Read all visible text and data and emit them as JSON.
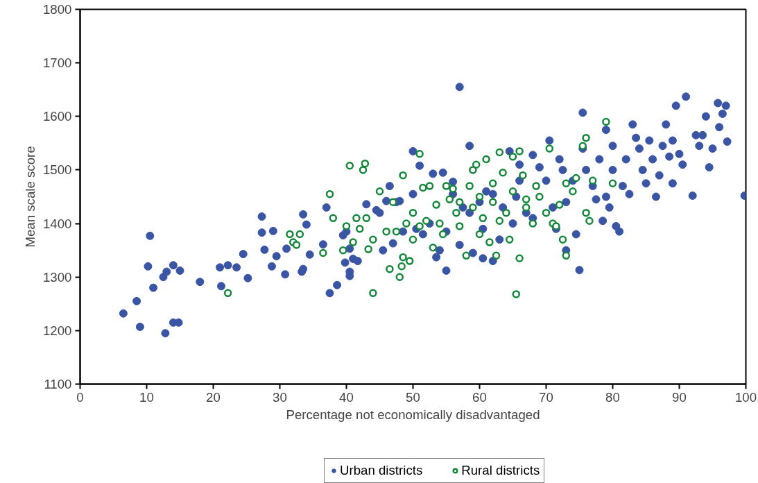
{
  "chart_data": {
    "type": "scatter",
    "xlabel": "Percentage not economically disadvantaged",
    "ylabel": "Mean scale score",
    "xlim": [
      0,
      100
    ],
    "xticks": [
      0,
      10,
      20,
      30,
      40,
      50,
      60,
      70,
      80,
      90,
      100
    ],
    "ylim": [
      1100,
      1800
    ],
    "yticks": [
      1100,
      1200,
      1300,
      1400,
      1500,
      1600,
      1700,
      1800
    ],
    "grid": false,
    "legend": "bottom",
    "marker": "circle",
    "series": [
      {
        "name": "Urban districts",
        "color": "#3a55a4",
        "x": [
          6.5,
          8.5,
          9,
          10.2,
          10.5,
          11,
          12.5,
          12.8,
          13,
          14,
          14,
          14.8,
          15,
          18,
          21,
          21.2,
          22.2,
          23.5,
          24.5,
          25.2,
          27.3,
          27.3,
          27.7,
          28.8,
          29,
          29.5,
          30.8,
          31,
          33.3,
          33.5,
          33.5,
          34,
          34.5,
          36.5,
          37,
          37.5,
          38.6,
          39.5,
          39.8,
          40,
          40.5,
          40.5,
          40.5,
          41,
          41.7,
          43,
          44.5,
          45,
          45.5,
          46,
          46.5,
          47,
          47.5,
          48,
          48.5,
          50,
          50,
          50.5,
          51,
          51.5,
          52.5,
          53,
          53.5,
          54,
          54.5,
          55,
          55,
          56,
          56,
          57,
          57,
          57.5,
          58.5,
          58.5,
          59,
          60,
          60.5,
          60.5,
          61,
          62,
          62,
          63,
          63.5,
          64.5,
          65,
          65.5,
          66,
          66,
          67,
          68,
          68,
          69,
          70,
          70.5,
          71,
          71.5,
          72,
          72.5,
          73,
          73,
          74,
          74.5,
          75,
          75.5,
          75.5,
          76,
          77,
          77.5,
          78,
          78.5,
          79,
          79,
          79.5,
          80,
          80,
          80.5,
          81,
          81.5,
          82,
          82.5,
          83,
          83.5,
          84,
          84.5,
          85,
          85.5,
          86,
          86.5,
          87,
          87.5,
          88,
          88.5,
          89,
          89,
          89.5,
          90,
          90.5,
          91,
          92,
          92.5,
          93,
          93.5,
          94,
          94.5,
          95,
          95.8,
          96,
          96.5,
          97,
          97.2,
          99.8
        ],
        "values": [
          1232,
          1255,
          1207,
          1320,
          1377,
          1280,
          1300,
          1195,
          1310,
          1322,
          1215,
          1215,
          1312,
          1291,
          1318,
          1283,
          1322,
          1318,
          1343,
          1298,
          1413,
          1383,
          1351,
          1320,
          1386,
          1339,
          1305,
          1353,
          1310,
          1315,
          1417,
          1398,
          1342,
          1361,
          1430,
          1270,
          1285,
          1378,
          1327,
          1385,
          1310,
          1302,
          1353,
          1334,
          1330,
          1436,
          1425,
          1420,
          1350,
          1442,
          1470,
          1363,
          1440,
          1442,
          1385,
          1535,
          1455,
          1390,
          1508,
          1380,
          1400,
          1493,
          1337,
          1350,
          1495,
          1312,
          1385,
          1478,
          1455,
          1655,
          1360,
          1430,
          1545,
          1420,
          1345,
          1440,
          1390,
          1335,
          1460,
          1330,
          1455,
          1370,
          1430,
          1535,
          1400,
          1450,
          1510,
          1480,
          1420,
          1528,
          1410,
          1505,
          1480,
          1555,
          1430,
          1390,
          1520,
          1500,
          1350,
          1440,
          1480,
          1380,
          1313,
          1607,
          1540,
          1500,
          1470,
          1445,
          1520,
          1405,
          1575,
          1450,
          1430,
          1545,
          1500,
          1395,
          1385,
          1470,
          1520,
          1455,
          1585,
          1560,
          1540,
          1500,
          1475,
          1555,
          1520,
          1450,
          1490,
          1545,
          1585,
          1525,
          1475,
          1555,
          1620,
          1530,
          1510,
          1637,
          1452,
          1565,
          1545,
          1565,
          1600,
          1505,
          1540,
          1625,
          1580,
          1605,
          1620,
          1553,
          1452
        ]
      },
      {
        "name": "Rural districts",
        "color": "#14883a",
        "x": [
          22.2,
          31.5,
          32,
          32.5,
          33,
          36.5,
          37.5,
          38,
          39.5,
          40,
          40.5,
          41,
          41.5,
          42,
          42.5,
          42.8,
          43,
          43.3,
          44,
          44,
          45,
          46,
          46.5,
          47,
          47.5,
          48,
          48.3,
          48.5,
          48.5,
          49,
          49.5,
          50,
          50,
          51,
          51,
          51.5,
          52,
          52.5,
          53,
          53.5,
          54,
          55,
          55.5,
          56,
          56.5,
          57,
          58,
          58.5,
          59,
          59.5,
          60,
          60.5,
          61,
          61.5,
          62,
          62.5,
          63,
          63.5,
          64,
          64.5,
          65,
          65,
          65.5,
          66,
          66,
          66.5,
          67,
          68,
          68.5,
          69,
          70,
          70.5,
          71,
          71.5,
          72,
          72.5,
          73,
          73,
          74,
          74.5,
          75.5,
          76,
          76,
          76.5,
          77,
          79,
          80,
          59,
          57,
          62,
          67,
          54.5,
          60,
          63
        ],
        "values": [
          1270,
          1380,
          1365,
          1360,
          1380,
          1345,
          1455,
          1410,
          1350,
          1395,
          1508,
          1365,
          1410,
          1390,
          1500,
          1512,
          1410,
          1352,
          1370,
          1270,
          1460,
          1385,
          1315,
          1440,
          1385,
          1300,
          1320,
          1490,
          1337,
          1400,
          1330,
          1420,
          1370,
          1530,
          1395,
          1467,
          1405,
          1470,
          1355,
          1435,
          1400,
          1470,
          1445,
          1465,
          1420,
          1395,
          1340,
          1470,
          1500,
          1510,
          1450,
          1410,
          1520,
          1365,
          1475,
          1340,
          1533,
          1495,
          1420,
          1370,
          1525,
          1460,
          1268,
          1535,
          1335,
          1490,
          1430,
          1400,
          1470,
          1450,
          1420,
          1540,
          1400,
          1395,
          1435,
          1370,
          1340,
          1475,
          1460,
          1485,
          1545,
          1420,
          1560,
          1405,
          1480,
          1590,
          1475,
          1430,
          1440,
          1440,
          1445,
          1380,
          1380,
          1405
        ]
      }
    ]
  }
}
